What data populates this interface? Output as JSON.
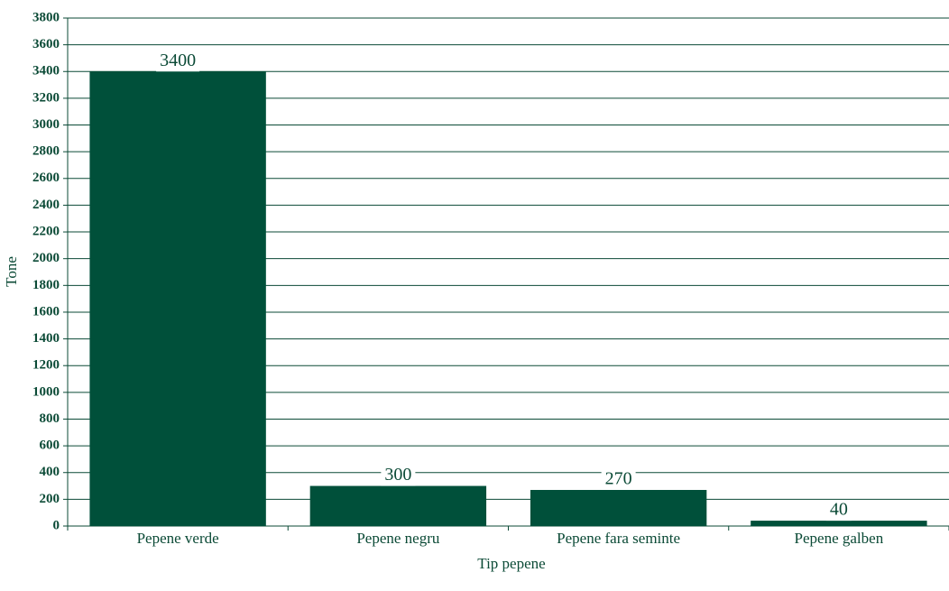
{
  "chart_data": {
    "type": "bar",
    "x_label": "Tip pepene",
    "y_label": "Tone",
    "categories": [
      "Pepene verde",
      "Pepene negru",
      "Pepene fara seminte",
      "Pepene galben"
    ],
    "values": [
      3400,
      300,
      270,
      40
    ],
    "color": "#00503a",
    "ylim": [
      0,
      3800
    ],
    "yticks": [
      0,
      200,
      400,
      600,
      800,
      1000,
      1200,
      1400,
      1600,
      1800,
      2000,
      2200,
      2400,
      2600,
      2800,
      3000,
      3200,
      3400,
      3600,
      3800
    ],
    "grid": true
  }
}
